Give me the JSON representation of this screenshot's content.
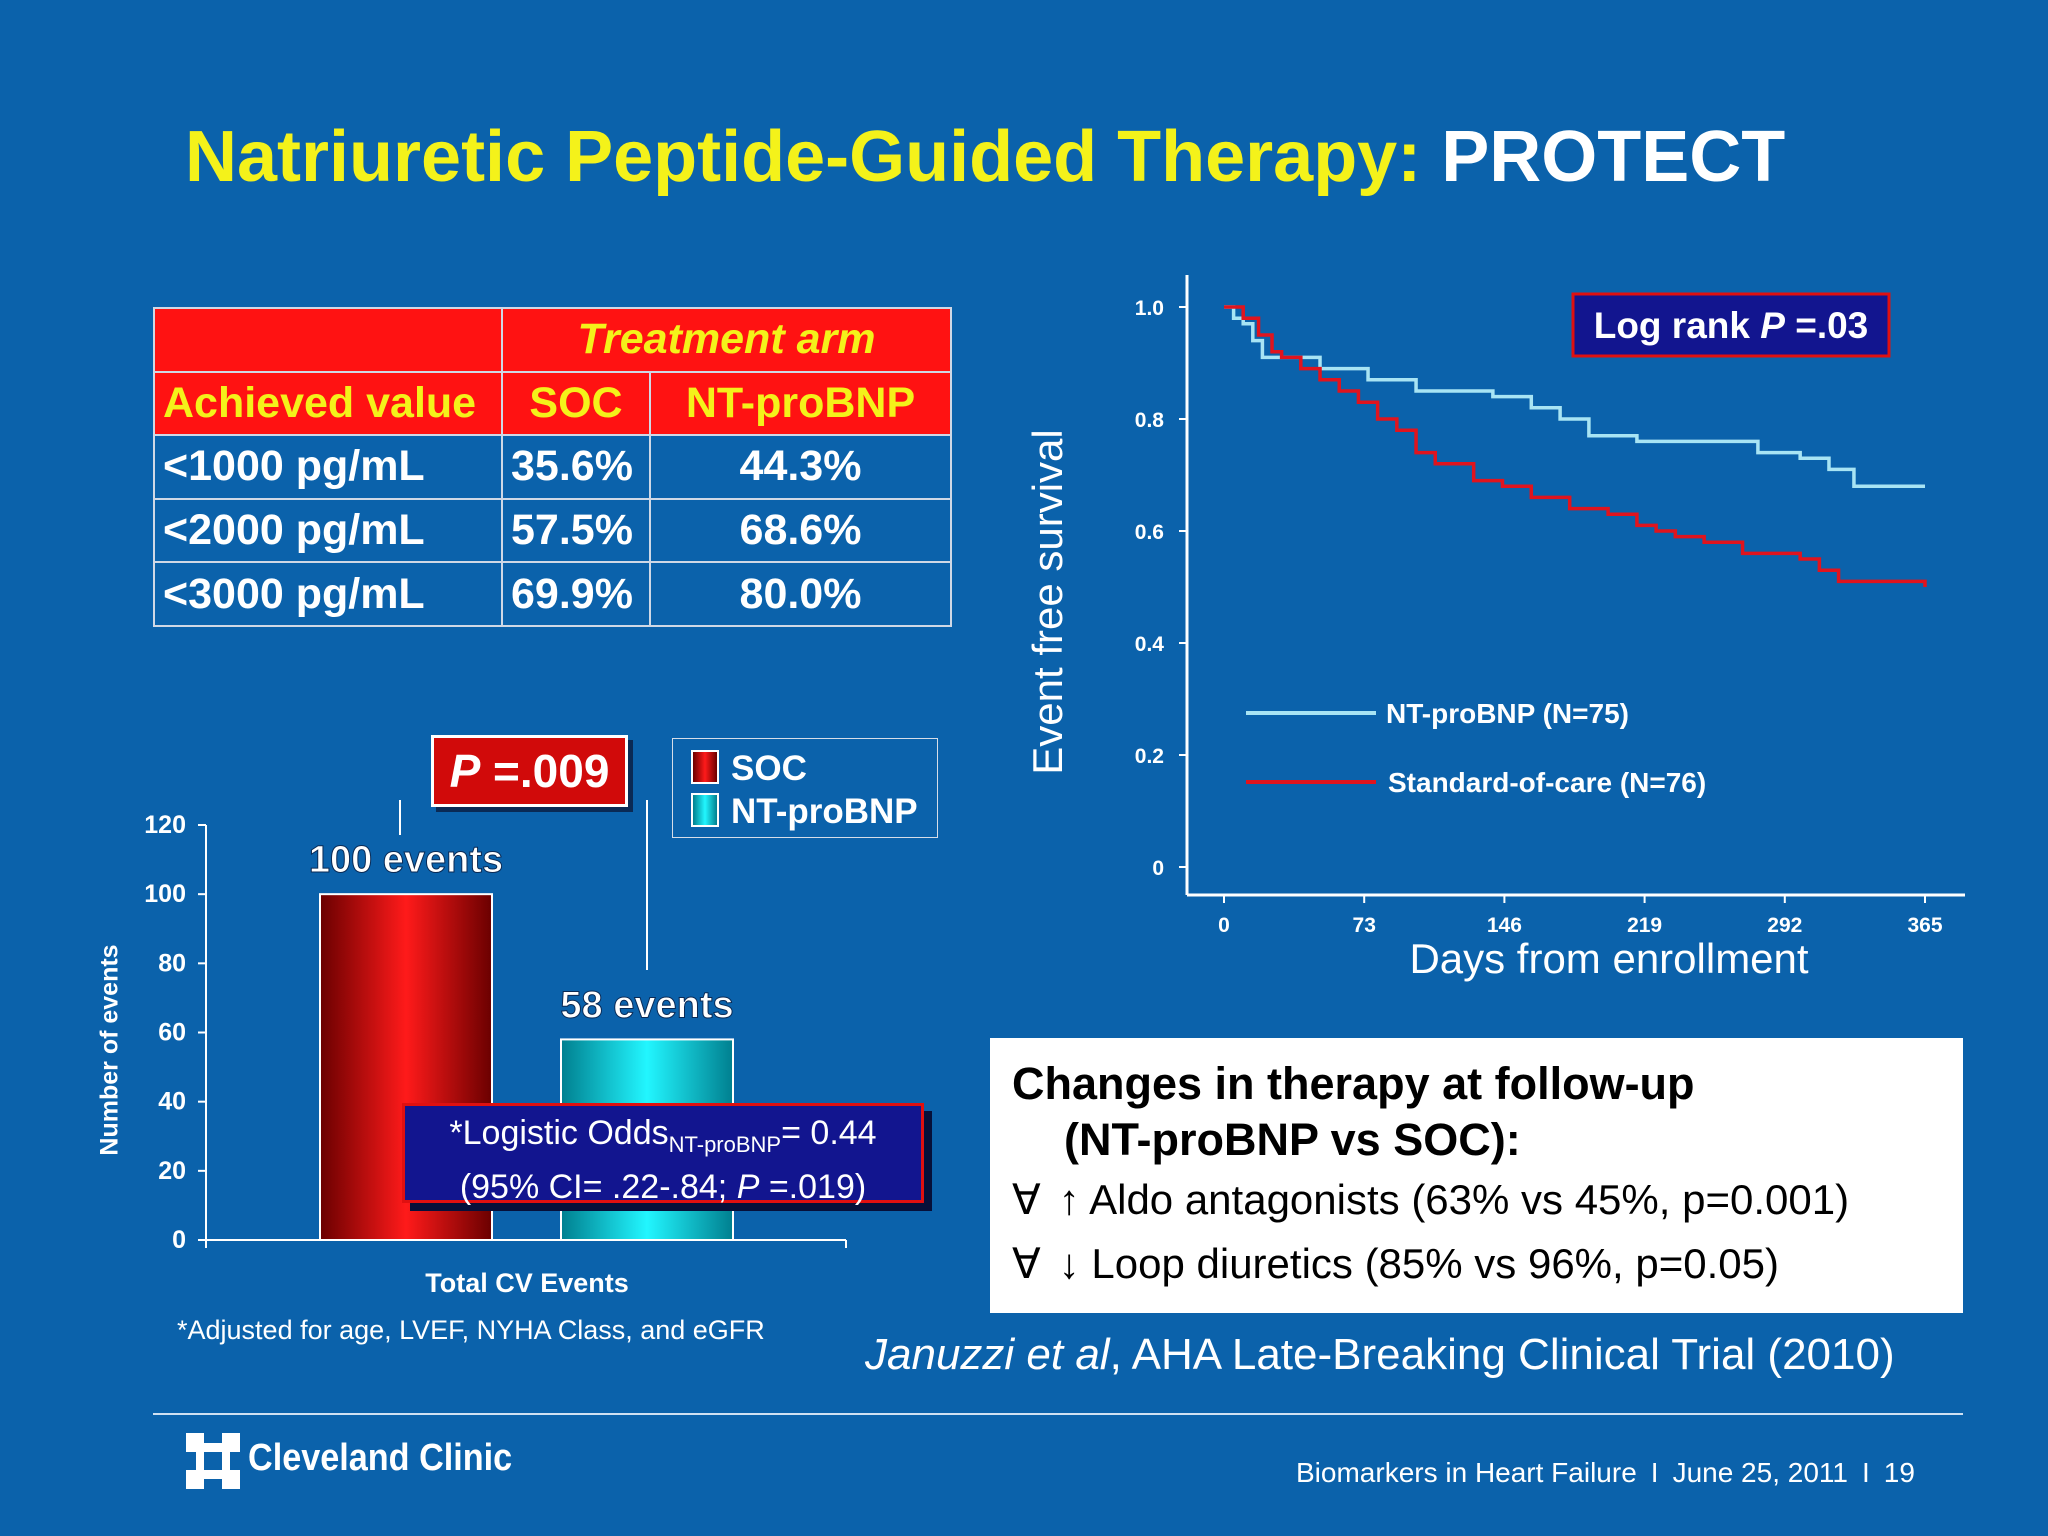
{
  "slide": {
    "title_part1": "Natriuretic Peptide-Guided Therapy:",
    "title_part2": "PROTECT"
  },
  "table": {
    "group_header": "Treatment arm",
    "columns": [
      "Achieved value",
      "SOC",
      "NT-proBNP"
    ],
    "rows": [
      [
        "<1000 pg/mL",
        "35.6%",
        "44.3%"
      ],
      [
        "<2000 pg/mL",
        "57.5%",
        "68.6%"
      ],
      [
        "<3000 pg/mL",
        "69.9%",
        "80.0%"
      ]
    ]
  },
  "chart_data": [
    {
      "type": "line",
      "ylabel": "Event free survival",
      "xlabel": "Days from enrollment",
      "xlim": [
        0,
        365
      ],
      "ylim": [
        0,
        1.0
      ],
      "xticks": [
        "0",
        "73",
        "146",
        "219",
        "292",
        "365"
      ],
      "yticks": [
        "1.0",
        "0.8",
        "0.6",
        "0.4",
        "0.2",
        "0"
      ],
      "annotation": "Log rank P =.03",
      "annotation_pre": "Log rank ",
      "annotation_p": "P",
      "annotation_post": " =.03",
      "series": [
        {
          "name": "NT-proBNP (N=75)",
          "color": "#a8e4f4",
          "x": [
            0,
            5,
            10,
            15,
            20,
            50,
            75,
            100,
            140,
            160,
            175,
            190,
            215,
            235,
            278,
            300,
            315,
            328,
            365
          ],
          "y": [
            1.0,
            0.98,
            0.97,
            0.94,
            0.91,
            0.89,
            0.87,
            0.85,
            0.84,
            0.82,
            0.8,
            0.77,
            0.76,
            0.76,
            0.74,
            0.73,
            0.71,
            0.68,
            0.68
          ]
        },
        {
          "name": "Standard-of-care (N=76)",
          "color": "#e0141e",
          "x": [
            0,
            10,
            18,
            25,
            30,
            40,
            50,
            60,
            70,
            80,
            90,
            100,
            110,
            130,
            145,
            160,
            180,
            200,
            215,
            225,
            235,
            250,
            255,
            270,
            300,
            310,
            320,
            365
          ],
          "y": [
            1.0,
            0.98,
            0.95,
            0.92,
            0.91,
            0.89,
            0.87,
            0.85,
            0.83,
            0.8,
            0.78,
            0.74,
            0.72,
            0.69,
            0.68,
            0.66,
            0.64,
            0.63,
            0.61,
            0.6,
            0.59,
            0.58,
            0.58,
            0.56,
            0.55,
            0.53,
            0.51,
            0.5
          ]
        }
      ]
    },
    {
      "type": "bar",
      "ylabel": "Number of events",
      "xlabel": "Total CV Events",
      "ylim": [
        0,
        120
      ],
      "yticks": [
        "0",
        "20",
        "40",
        "60",
        "80",
        "100",
        "120"
      ],
      "categories": [
        "SOC",
        "NT-proBNP"
      ],
      "values": [
        100,
        58
      ],
      "colors": [
        "#ff1a1a",
        "#22f6ff"
      ],
      "data_labels": [
        "100 events",
        "58 events"
      ],
      "p_annotation": "P =.009",
      "p_letter": "P",
      "p_value": " =.009",
      "odds_line1": "*Logistic Odds",
      "odds_sub": "NT-proBNP",
      "odds_eq": "= 0.44",
      "odds_line2_pre": "(95% CI= .22-.84; ",
      "odds_line2_p": "P",
      "odds_line2_post": " =.019)"
    }
  ],
  "notes": {
    "adjusted": "*Adjusted for age, LVEF, NYHA Class, and eGFR"
  },
  "therapy": {
    "heading_line1": "Changes in therapy at follow-up",
    "heading_line2": "(NT-proBNP vs SOC):",
    "bullet_symbol": "∀",
    "items": [
      {
        "arrow": "↑",
        "text": "Aldo antagonists (63% vs 45%, p=0.001)"
      },
      {
        "arrow": "↓",
        "text": "Loop diuretics (85% vs 96%, p=0.05)"
      }
    ]
  },
  "citation": {
    "authors": "Januzzi et al",
    "rest": ", AHA Late-Breaking Clinical Trial (2010)"
  },
  "footer": {
    "brand": "Cleveland Clinic",
    "talk": "Biomarkers in Heart Failure",
    "date": "June 25, 2011",
    "page": "19",
    "separator": "I"
  }
}
